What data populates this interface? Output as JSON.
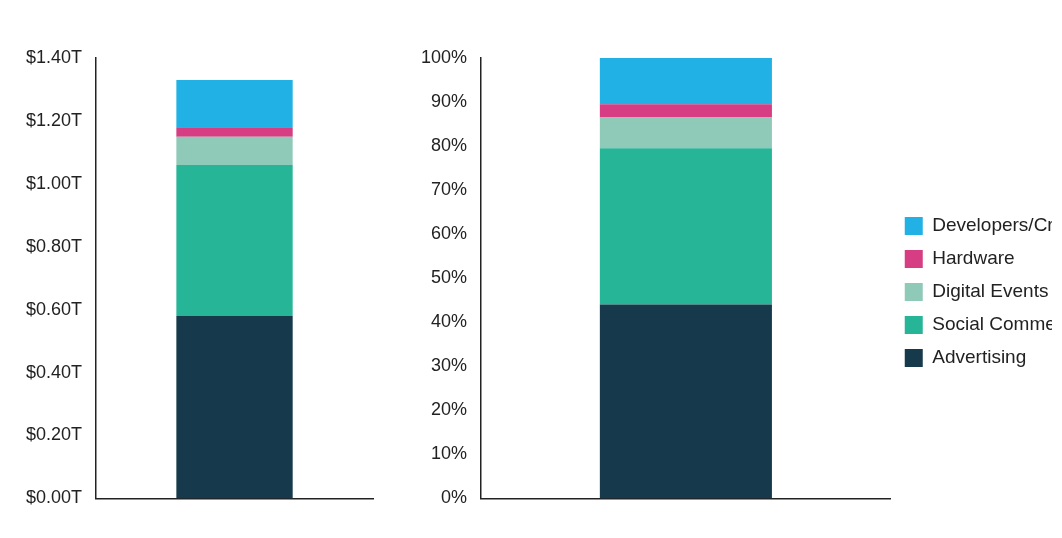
{
  "chart_data": [
    {
      "type": "bar",
      "stacked": true,
      "grid": false,
      "categories": [
        null
      ],
      "series": [
        {
          "name": "Advertising",
          "color": "#163a4b",
          "values": [
            0.58
          ]
        },
        {
          "name": "Social Commerce",
          "color": "#27b597",
          "values": [
            0.48
          ]
        },
        {
          "name": "Digital Events",
          "color": "#8fcab8",
          "values": [
            0.09
          ]
        },
        {
          "name": "Hardware",
          "color": "#d63d82",
          "values": [
            0.03
          ]
        },
        {
          "name": "Developers/Creators",
          "color": "#21b1e4",
          "values": [
            0.15
          ]
        }
      ],
      "ylim": [
        0,
        1.4
      ],
      "yticks": [
        {
          "value": 0,
          "label": "$0.00T"
        },
        {
          "value": 0.2,
          "label": "$0.20T"
        },
        {
          "value": 0.4,
          "label": "$0.40T"
        },
        {
          "value": 0.6,
          "label": "$0.60T"
        },
        {
          "value": 0.8,
          "label": "$0.80T"
        },
        {
          "value": 1.0,
          "label": "$1.00T"
        },
        {
          "value": 1.2,
          "label": "$1.20T"
        },
        {
          "value": 1.4,
          "label": "$1.40T"
        }
      ]
    },
    {
      "type": "bar",
      "stacked": true,
      "grid": false,
      "legend": "right",
      "categories": [
        null
      ],
      "series": [
        {
          "name": "Advertising",
          "color": "#163a4b",
          "values": [
            44
          ]
        },
        {
          "name": "Social Commerce",
          "color": "#27b597",
          "values": [
            35.5
          ]
        },
        {
          "name": "Digital Events",
          "color": "#8fcab8",
          "values": [
            7
          ]
        },
        {
          "name": "Hardware",
          "color": "#d63d82",
          "values": [
            3
          ]
        },
        {
          "name": "Developers/Creators",
          "color": "#21b1e4",
          "values": [
            10.5
          ]
        }
      ],
      "ylim": [
        0,
        100
      ],
      "yticks": [
        {
          "value": 0,
          "label": "0%"
        },
        {
          "value": 10,
          "label": "10%"
        },
        {
          "value": 20,
          "label": "20%"
        },
        {
          "value": 30,
          "label": "30%"
        },
        {
          "value": 40,
          "label": "40%"
        },
        {
          "value": 50,
          "label": "50%"
        },
        {
          "value": 60,
          "label": "60%"
        },
        {
          "value": 70,
          "label": "70%"
        },
        {
          "value": 80,
          "label": "80%"
        },
        {
          "value": 90,
          "label": "90%"
        },
        {
          "value": 100,
          "label": "100%"
        }
      ]
    }
  ]
}
